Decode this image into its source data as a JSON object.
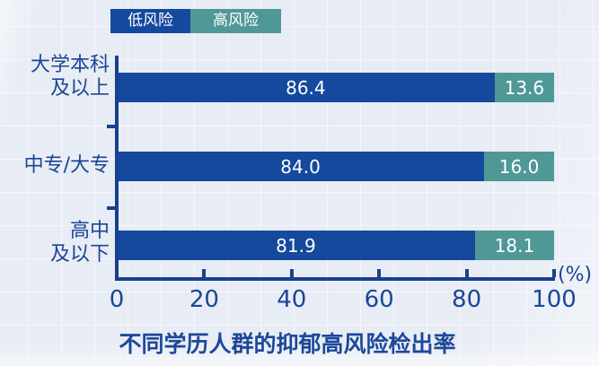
{
  "colors": {
    "low_risk": "#14499e",
    "high_risk": "#4f9896",
    "axis": "#17418f",
    "text": "#1a4696",
    "background": "#e8ecf4"
  },
  "legend": {
    "low_label": "低风险",
    "high_label": "高风险"
  },
  "axis_unit": "(%)",
  "title": "不同学历人群的抑郁高风险检出率",
  "chart_data": {
    "type": "bar",
    "orientation": "horizontal",
    "stacked": true,
    "title": "不同学历人群的抑郁高风险检出率",
    "categories": [
      "大学本科\n及以上",
      "中专/大专",
      "高中\n及以下"
    ],
    "series": [
      {
        "name": "低风险",
        "color": "#14499e",
        "values": [
          86.4,
          84.0,
          81.9
        ],
        "labels": [
          "86.4",
          "84.0",
          "81.9"
        ]
      },
      {
        "name": "高风险",
        "color": "#4f9896",
        "values": [
          13.6,
          16.0,
          18.1
        ],
        "labels": [
          "13.6",
          "16.0",
          "18.1"
        ]
      }
    ],
    "x_ticks": [
      0,
      20,
      40,
      60,
      80,
      100
    ],
    "x_tick_labels": [
      "0",
      "20",
      "40",
      "60",
      "80",
      "100"
    ],
    "xlim": [
      0,
      100
    ],
    "xlabel_unit": "(%)",
    "grid": true,
    "legend_position": "top"
  }
}
